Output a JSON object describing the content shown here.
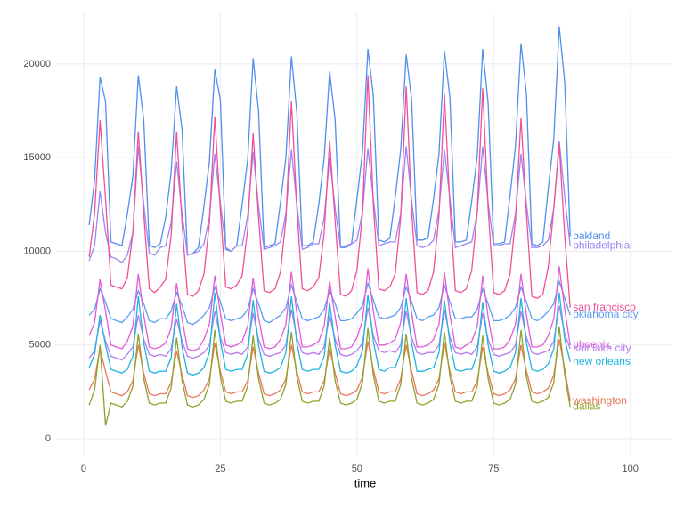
{
  "chart_data": {
    "type": "line",
    "x_label": "time",
    "xlim": [
      -5.2,
      107.7
    ],
    "ylim": [
      -900,
      22700
    ],
    "xticks": [
      0,
      25,
      50,
      75,
      100
    ],
    "yticks": [
      0,
      5000,
      10000,
      15000,
      20000
    ],
    "grid": true,
    "x": [
      1,
      2,
      3,
      4,
      5,
      6,
      7,
      8,
      9,
      10,
      11,
      12,
      13,
      14,
      15,
      16,
      17,
      18,
      19,
      20,
      21,
      22,
      23,
      24,
      25,
      26,
      27,
      28,
      29,
      30,
      31,
      32,
      33,
      34,
      35,
      36,
      37,
      38,
      39,
      40,
      41,
      42,
      43,
      44,
      45,
      46,
      47,
      48,
      49,
      50,
      51,
      52,
      53,
      54,
      55,
      56,
      57,
      58,
      59,
      60,
      61,
      62,
      63,
      64,
      65,
      66,
      67,
      68,
      69,
      70,
      71,
      72,
      73,
      74,
      75,
      76,
      77,
      78,
      79,
      80,
      81,
      82,
      83,
      84,
      85,
      86,
      87,
      88,
      89
    ],
    "series": [
      {
        "name": "oakland",
        "color": "#4f8ff0",
        "values": [
          11400,
          13800,
          19300,
          18000,
          10500,
          10400,
          10300,
          12000,
          14000,
          19400,
          17000,
          10300,
          10200,
          10400,
          11800,
          14200,
          18800,
          16500,
          9800,
          9900,
          10200,
          12400,
          14800,
          19700,
          18100,
          10100,
          10000,
          10300,
          12500,
          14900,
          20300,
          17500,
          10200,
          10300,
          10400,
          12600,
          15000,
          20400,
          17400,
          10300,
          10300,
          10500,
          12500,
          15000,
          19600,
          17000,
          10200,
          10200,
          10400,
          12800,
          15300,
          20800,
          18300,
          10600,
          10500,
          10700,
          12900,
          15400,
          20500,
          18100,
          10600,
          10600,
          10700,
          12800,
          15200,
          20700,
          18200,
          10500,
          10500,
          10600,
          12700,
          15100,
          20800,
          17900,
          10400,
          10400,
          10500,
          13000,
          15600,
          21100,
          18400,
          10400,
          10300,
          10500,
          13400,
          16000,
          22000,
          19000,
          10800
        ]
      },
      {
        "name": "philadelphia",
        "color": "#9a86f2",
        "values": [
          9500,
          10300,
          13200,
          11000,
          9700,
          9600,
          9400,
          9800,
          11000,
          15600,
          12500,
          9900,
          9800,
          10200,
          10300,
          11500,
          14800,
          12000,
          9800,
          9900,
          10000,
          10400,
          11800,
          15200,
          12600,
          10200,
          10000,
          10300,
          10300,
          11900,
          15300,
          12400,
          10100,
          10200,
          10300,
          10500,
          12000,
          15400,
          12500,
          10100,
          10200,
          10400,
          10400,
          11800,
          15000,
          12300,
          10200,
          10300,
          10400,
          10600,
          12100,
          15500,
          12800,
          10300,
          10400,
          10500,
          10500,
          12000,
          15600,
          12700,
          10300,
          10200,
          10300,
          10600,
          12200,
          15400,
          12800,
          10200,
          10300,
          10400,
          10500,
          12100,
          15600,
          12600,
          10300,
          10300,
          10400,
          10400,
          12000,
          15200,
          12500,
          10200,
          10200,
          10300,
          10600,
          12300,
          15900,
          12900,
          10300
        ]
      },
      {
        "name": "san francisco",
        "color": "#f0509a",
        "values": [
          9700,
          12000,
          17000,
          12800,
          8200,
          8100,
          8000,
          8600,
          11000,
          16400,
          12000,
          8000,
          7800,
          8100,
          8500,
          10800,
          16400,
          11500,
          7700,
          7600,
          7900,
          8800,
          11500,
          17200,
          12200,
          8100,
          8000,
          8200,
          8700,
          11200,
          16300,
          11800,
          7900,
          7800,
          8000,
          8900,
          11700,
          18000,
          12300,
          8000,
          7900,
          8100,
          8600,
          11000,
          15900,
          11600,
          7700,
          7600,
          7900,
          9000,
          12000,
          19400,
          12500,
          8000,
          7900,
          8100,
          8800,
          11800,
          18800,
          12200,
          7800,
          7700,
          7900,
          8900,
          11900,
          18400,
          12400,
          7900,
          7800,
          8000,
          9000,
          12100,
          18700,
          12300,
          7800,
          7700,
          7900,
          8800,
          11700,
          17100,
          12000,
          7600,
          7500,
          7700,
          9200,
          12300,
          15700,
          10800,
          7000
        ]
      },
      {
        "name": "oklahoma city",
        "color": "#5a9cf2",
        "values": [
          6600,
          6900,
          8000,
          7300,
          6400,
          6300,
          6200,
          6500,
          6900,
          7900,
          7200,
          6300,
          6200,
          6400,
          6400,
          6800,
          7800,
          7100,
          6200,
          6100,
          6300,
          6600,
          7000,
          8100,
          7300,
          6400,
          6300,
          6400,
          6500,
          6900,
          8000,
          7200,
          6300,
          6200,
          6400,
          6600,
          7000,
          8200,
          7300,
          6400,
          6300,
          6400,
          6500,
          6900,
          7900,
          7200,
          6300,
          6300,
          6400,
          6700,
          7100,
          8300,
          7400,
          6500,
          6400,
          6500,
          6600,
          7000,
          8100,
          7300,
          6400,
          6300,
          6500,
          6600,
          7000,
          8200,
          7300,
          6400,
          6400,
          6500,
          6500,
          6900,
          8000,
          7200,
          6300,
          6300,
          6400,
          6600,
          7000,
          8100,
          7300,
          6400,
          6300,
          6500,
          6800,
          7200,
          8400,
          7500,
          6600
        ]
      },
      {
        "name": "phoenix",
        "color": "#e15ad8",
        "values": [
          5500,
          6200,
          8500,
          6800,
          5000,
          4900,
          4800,
          5200,
          6000,
          8800,
          6600,
          4900,
          4800,
          4900,
          5100,
          5900,
          8300,
          6400,
          4800,
          4700,
          4800,
          5300,
          6100,
          8700,
          6700,
          5000,
          4900,
          5000,
          5200,
          6000,
          8600,
          6500,
          4900,
          4800,
          4900,
          5300,
          6100,
          8900,
          6700,
          4900,
          4900,
          5000,
          5200,
          6000,
          8400,
          6500,
          4800,
          4800,
          4900,
          5400,
          6300,
          9100,
          6800,
          5000,
          5000,
          5100,
          5300,
          6200,
          8800,
          6700,
          4900,
          4900,
          5000,
          5300,
          6100,
          8900,
          6600,
          4900,
          4800,
          5000,
          5200,
          6000,
          8700,
          6500,
          4800,
          4800,
          4900,
          5300,
          6100,
          8800,
          6600,
          4900,
          4900,
          5000,
          5500,
          6400,
          9200,
          6900,
          5000
        ]
      },
      {
        "name": "salt lake city",
        "color": "#b87af2",
        "values": [
          4300,
          4700,
          6300,
          5200,
          4400,
          4300,
          4200,
          4500,
          4900,
          6600,
          5300,
          4500,
          4400,
          4500,
          4400,
          4800,
          6400,
          5200,
          4400,
          4300,
          4400,
          4600,
          5000,
          6800,
          5400,
          4600,
          4500,
          4600,
          4500,
          4900,
          6700,
          5300,
          4500,
          4400,
          4500,
          4600,
          5000,
          6900,
          5400,
          4600,
          4500,
          4600,
          4500,
          4900,
          6600,
          5300,
          4500,
          4400,
          4500,
          4700,
          5100,
          7000,
          5500,
          4700,
          4600,
          4700,
          4600,
          5000,
          6800,
          5400,
          4600,
          4500,
          4600,
          4600,
          5000,
          6900,
          5400,
          4600,
          4500,
          4600,
          4500,
          4900,
          6700,
          5300,
          4500,
          4400,
          4500,
          4600,
          5000,
          6800,
          5400,
          4600,
          4500,
          4600,
          4700,
          5200,
          7100,
          5600,
          4800
        ]
      },
      {
        "name": "new orleans",
        "color": "#1fb3e0",
        "values": [
          3800,
          4500,
          6600,
          5000,
          3700,
          3600,
          3500,
          3700,
          4400,
          7600,
          5100,
          3600,
          3500,
          3600,
          3600,
          4300,
          7200,
          4900,
          3500,
          3400,
          3500,
          3800,
          4600,
          7800,
          5200,
          3700,
          3600,
          3700,
          3700,
          4500,
          7400,
          5000,
          3600,
          3500,
          3600,
          3800,
          4600,
          7600,
          5100,
          3700,
          3600,
          3700,
          3700,
          4400,
          7300,
          5000,
          3600,
          3500,
          3600,
          3900,
          4700,
          7700,
          5200,
          3700,
          3600,
          3800,
          3800,
          4600,
          7500,
          5100,
          3600,
          3600,
          3700,
          3800,
          4600,
          7400,
          5100,
          3700,
          3600,
          3700,
          3700,
          4500,
          7300,
          5000,
          3600,
          3500,
          3600,
          3800,
          4600,
          7500,
          5100,
          3700,
          3600,
          3700,
          4000,
          4800,
          7800,
          5300,
          4100
        ]
      },
      {
        "name": "washington",
        "color": "#e8785a",
        "values": [
          2600,
          3200,
          4800,
          3600,
          2500,
          2400,
          2300,
          2500,
          3100,
          5000,
          3500,
          2400,
          2300,
          2400,
          2400,
          3000,
          4700,
          3400,
          2300,
          2200,
          2300,
          2600,
          3200,
          5100,
          3600,
          2500,
          2400,
          2500,
          2500,
          3100,
          4900,
          3500,
          2400,
          2300,
          2400,
          2600,
          3200,
          5000,
          3600,
          2500,
          2400,
          2500,
          2500,
          3100,
          4800,
          3500,
          2400,
          2300,
          2400,
          2600,
          3300,
          5200,
          3700,
          2500,
          2400,
          2500,
          2500,
          3200,
          5000,
          3600,
          2400,
          2300,
          2400,
          2600,
          3200,
          5100,
          3600,
          2500,
          2400,
          2500,
          2500,
          3100,
          4900,
          3500,
          2400,
          2300,
          2400,
          2600,
          3200,
          5000,
          3600,
          2500,
          2400,
          2500,
          2700,
          3400,
          5300,
          3700,
          2000
        ]
      },
      {
        "name": "dallas",
        "color": "#8fa22a",
        "values": [
          1800,
          2600,
          5000,
          700,
          1900,
          1800,
          1700,
          2000,
          2800,
          5600,
          3200,
          1900,
          1800,
          1900,
          1900,
          2700,
          5400,
          3100,
          1800,
          1700,
          1800,
          2100,
          2900,
          5800,
          3300,
          2000,
          1900,
          2000,
          2000,
          2800,
          5500,
          3200,
          1900,
          1800,
          1900,
          2100,
          2900,
          5700,
          3300,
          2000,
          1900,
          2000,
          2000,
          2800,
          5400,
          3100,
          1900,
          1800,
          1900,
          2100,
          3000,
          5900,
          3400,
          2000,
          1900,
          2000,
          2000,
          2900,
          5600,
          3200,
          1900,
          1800,
          1900,
          2100,
          2900,
          5700,
          3300,
          2000,
          1900,
          2000,
          2000,
          2800,
          5500,
          3200,
          1900,
          1800,
          1900,
          2100,
          2900,
          5800,
          3300,
          2000,
          1900,
          2000,
          2200,
          3000,
          6000,
          3400,
          1700
        ]
      }
    ]
  }
}
